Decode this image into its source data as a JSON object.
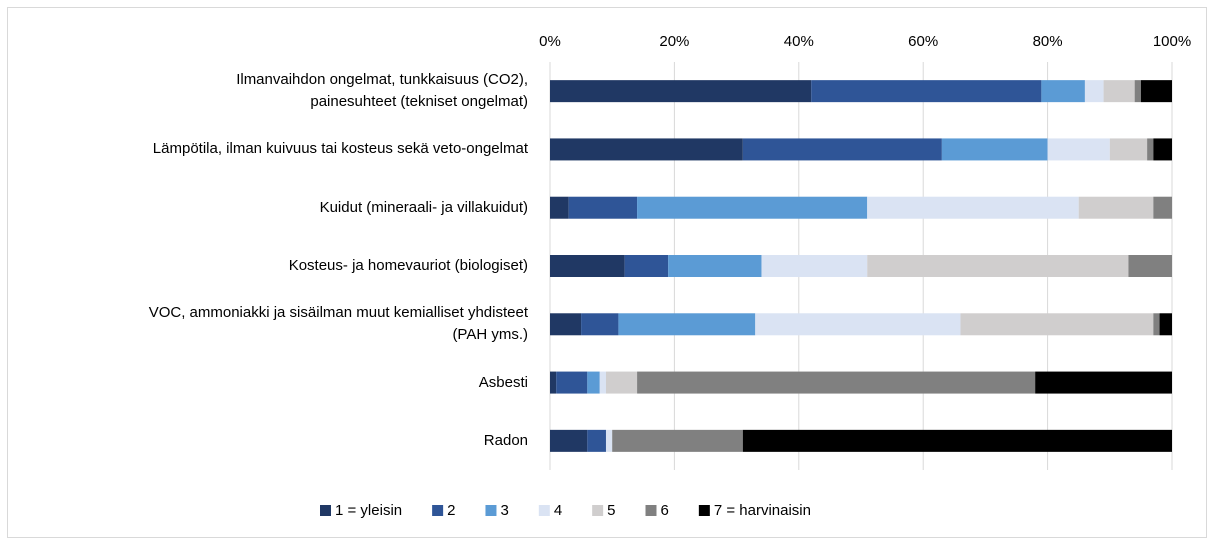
{
  "chart_data": {
    "type": "stacked_bar_horizontal",
    "categories": [
      "Ilmanvaihdon ongelmat, tunkkaisuus (CO2),\npainesuhteet (tekniset ongelmat)",
      "Lämpötila, ilman kuivuus tai kosteus sekä veto-ongelmat",
      "Kuidut (mineraali- ja villakuidut)",
      "Kosteus- ja homevauriot (biologiset)",
      "VOC, ammoniakki ja sisäilman muut kemialliset yhdisteet\n(PAH yms.)",
      "Asbesti",
      "Radon"
    ],
    "series": [
      {
        "name": "1 = yleisin",
        "color": "#203864",
        "values": [
          42,
          31,
          3,
          12,
          5,
          1,
          6
        ]
      },
      {
        "name": "2",
        "color": "#2f5597",
        "values": [
          37,
          32,
          11,
          7,
          6,
          5,
          3
        ]
      },
      {
        "name": "3",
        "color": "#5b9bd5",
        "values": [
          7,
          17,
          37,
          15,
          22,
          2,
          0
        ]
      },
      {
        "name": "4",
        "color": "#dae3f3",
        "values": [
          3,
          10,
          34,
          17,
          33,
          1,
          1
        ]
      },
      {
        "name": "5",
        "color": "#d0cece",
        "values": [
          5,
          6,
          12,
          42,
          31,
          5,
          0
        ]
      },
      {
        "name": "6",
        "color": "#808080",
        "values": [
          1,
          1,
          3,
          7,
          1,
          64,
          21
        ]
      },
      {
        "name": "7 = harvinaisin",
        "color": "#000000",
        "values": [
          5,
          3,
          0,
          0,
          2,
          22,
          69
        ]
      }
    ],
    "xlim": [
      0,
      100
    ],
    "xticks": [
      {
        "value": 0,
        "label": "0%"
      },
      {
        "value": 20,
        "label": "20%"
      },
      {
        "value": 40,
        "label": "40%"
      },
      {
        "value": 60,
        "label": "60%"
      },
      {
        "value": 80,
        "label": "80%"
      },
      {
        "value": 100,
        "label": "100%"
      }
    ],
    "grid": true,
    "legend": "bottom"
  }
}
